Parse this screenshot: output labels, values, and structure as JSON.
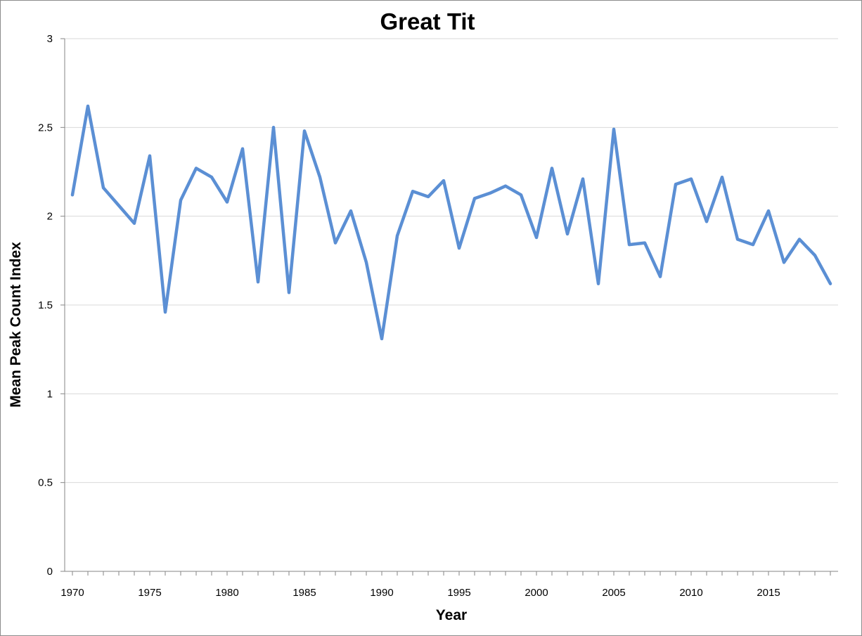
{
  "chart_data": {
    "type": "line",
    "title": "Great Tit",
    "xlabel": "Year",
    "ylabel": "Mean Peak Count Index",
    "xlim": [
      1970,
      2019
    ],
    "ylim": [
      0,
      3
    ],
    "x_ticks": [
      1970,
      1975,
      1980,
      1985,
      1990,
      1995,
      2000,
      2005,
      2010,
      2015
    ],
    "x_tick_labels": [
      "1970",
      "1975",
      "1980",
      "1985",
      "1990",
      "1995",
      "2000",
      "2005",
      "2010",
      "2015"
    ],
    "y_ticks": [
      0,
      0.5,
      1,
      1.5,
      2,
      2.5,
      3
    ],
    "y_tick_labels": [
      "0",
      "0.5",
      "1",
      "1.5",
      "2",
      "2.5",
      "3"
    ],
    "grid": "horizontal",
    "legend": "none",
    "line_color": "#5b8fd4",
    "series": [
      {
        "x": [
          1970,
          1971,
          1972,
          1973,
          1974,
          1975,
          1976,
          1977,
          1978,
          1979,
          1980,
          1981,
          1982,
          1983,
          1984,
          1985,
          1986,
          1987,
          1988,
          1989,
          1990,
          1991,
          1992,
          1993,
          1994,
          1995,
          1996,
          1997,
          1998,
          1999,
          2000,
          2001,
          2002,
          2003,
          2004,
          2005,
          2006,
          2007,
          2008,
          2009,
          2010,
          2011,
          2012,
          2013,
          2014,
          2015,
          2016,
          2017,
          2018,
          2019
        ],
        "y": [
          2.12,
          2.62,
          2.16,
          2.06,
          1.96,
          2.34,
          1.46,
          2.09,
          2.27,
          2.22,
          2.08,
          2.38,
          1.63,
          2.5,
          1.57,
          2.48,
          2.22,
          1.85,
          2.03,
          1.74,
          1.31,
          1.89,
          2.14,
          2.11,
          2.2,
          1.82,
          2.1,
          2.13,
          2.17,
          2.12,
          1.88,
          2.27,
          1.9,
          2.21,
          1.62,
          2.49,
          1.84,
          1.85,
          1.66,
          2.18,
          2.21,
          1.97,
          2.22,
          1.87,
          1.84,
          2.03,
          1.74,
          1.87,
          1.78,
          1.62
        ]
      }
    ]
  }
}
